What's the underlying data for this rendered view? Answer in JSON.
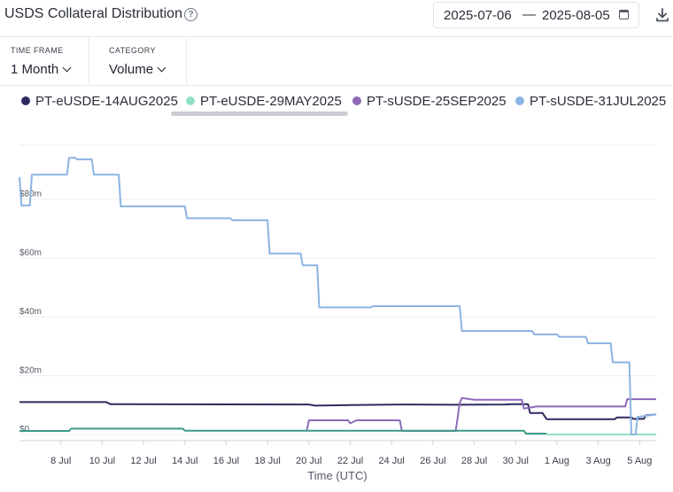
{
  "header": {
    "title": "USDS Collateral Distribution",
    "date_start": "2025-07-06",
    "date_separator": "—",
    "date_end": "2025-08-05",
    "help_glyph": "?"
  },
  "filters": {
    "time_frame_label": "TIME FRAME",
    "time_frame_value": "1 Month",
    "category_label": "CATEGORY",
    "category_value": "Volume"
  },
  "colors": {
    "eUSDE14AUG": "#2e2b5f",
    "eUSDE29MAY": "#8fe0c4",
    "sUSDE25SEP": "#8e6ab8",
    "sUSDE31JUL": "#8bb4e3",
    "green_line": "#3b9a86",
    "grid": "#eceef1"
  },
  "chart_data": {
    "type": "line",
    "xlabel": "Time (UTC)",
    "ylabel": "",
    "x_start_day": 6,
    "x_end_day": 36.8,
    "ylim": [
      0,
      100
    ],
    "x_ticks": [
      "8 Jul",
      "10 Jul",
      "12 Jul",
      "14 Jul",
      "16 Jul",
      "18 Jul",
      "20 Jul",
      "22 Jul",
      "24 Jul",
      "26 Jul",
      "28 Jul",
      "30 Jul",
      "1 Aug",
      "3 Aug",
      "5 Aug"
    ],
    "x_tick_days": [
      8,
      10,
      12,
      14,
      16,
      18,
      20,
      22,
      24,
      26,
      28,
      30,
      32,
      34,
      36
    ],
    "y_ticks": [
      "$0",
      "$20m",
      "$40m",
      "$60m",
      "$80m"
    ],
    "y_tick_values": [
      0,
      20,
      40,
      60,
      80
    ],
    "series": [
      {
        "name": "PT-eUSDE-14AUG2025",
        "color_key": "eUSDE14AUG",
        "points": [
          [
            6,
            11
          ],
          [
            10.2,
            11
          ],
          [
            10.4,
            10.3
          ],
          [
            20,
            10.2
          ],
          [
            20.3,
            9.8
          ],
          [
            22,
            10
          ],
          [
            24.5,
            10.2
          ],
          [
            27.2,
            10.1
          ],
          [
            29.5,
            10.2
          ],
          [
            29.8,
            10.3
          ],
          [
            30.6,
            10.3
          ],
          [
            30.7,
            7.3
          ],
          [
            31.3,
            7.3
          ],
          [
            31.5,
            5.2
          ],
          [
            34.8,
            5.2
          ],
          [
            34.9,
            5.8
          ],
          [
            35.6,
            5.8
          ],
          [
            35.7,
            5.3
          ],
          [
            36.2,
            5.3
          ],
          [
            36.3,
            6.5
          ],
          [
            36.8,
            6.8
          ]
        ]
      },
      {
        "name": "PT-eUSDE-29MAY2025",
        "color_key": "eUSDE29MAY",
        "points": [
          [
            31.5,
            0
          ],
          [
            36.8,
            0
          ]
        ]
      },
      {
        "name": "PT-sUSDE-25SEP2025",
        "color_key": "sUSDE25SEP",
        "points": [
          [
            19.9,
            1.5
          ],
          [
            20,
            4.8
          ],
          [
            21.9,
            4.8
          ],
          [
            22,
            3.8
          ],
          [
            22.3,
            4.8
          ],
          [
            24.4,
            4.8
          ],
          [
            24.5,
            1.2
          ],
          [
            27.1,
            1.2
          ],
          [
            27.2,
            6
          ],
          [
            27.3,
            10.8
          ],
          [
            27.4,
            12.4
          ],
          [
            28,
            11.8
          ],
          [
            30.3,
            11.8
          ],
          [
            30.4,
            8.8
          ],
          [
            31,
            9.5
          ],
          [
            35.3,
            9.5
          ],
          [
            35.4,
            12
          ],
          [
            36.8,
            12
          ]
        ]
      },
      {
        "name": "PT-sUSDE-31JUL2025",
        "color_key": "sUSDE31JUL",
        "points": [
          [
            6,
            87.5
          ],
          [
            6.1,
            77.8
          ],
          [
            6.5,
            77.8
          ],
          [
            6.6,
            88.3
          ],
          [
            8.3,
            88.3
          ],
          [
            8.4,
            94
          ],
          [
            8.7,
            94
          ],
          [
            8.8,
            93.5
          ],
          [
            9.5,
            93.5
          ],
          [
            9.6,
            88.3
          ],
          [
            10.8,
            88.3
          ],
          [
            10.9,
            77.5
          ],
          [
            14,
            77.5
          ],
          [
            14.1,
            73.5
          ],
          [
            16.2,
            73.5
          ],
          [
            16.3,
            72.8
          ],
          [
            18,
            72.8
          ],
          [
            18.1,
            61.5
          ],
          [
            19.6,
            61.5
          ],
          [
            19.7,
            57.5
          ],
          [
            20.4,
            57.5
          ],
          [
            20.5,
            43.2
          ],
          [
            23,
            43.2
          ],
          [
            23.1,
            43.6
          ],
          [
            27.3,
            43.6
          ],
          [
            27.4,
            35.2
          ],
          [
            30.8,
            35.2
          ],
          [
            30.9,
            34
          ],
          [
            32,
            34
          ],
          [
            32.1,
            33.2
          ],
          [
            33.4,
            33.2
          ],
          [
            33.5,
            31
          ],
          [
            34.6,
            31
          ],
          [
            34.7,
            24.5
          ],
          [
            35.5,
            24.5
          ],
          [
            35.6,
            0
          ],
          [
            35.8,
            0
          ],
          [
            35.9,
            6
          ],
          [
            36.8,
            6.8
          ]
        ]
      },
      {
        "name": "",
        "color_key": "green_line",
        "points": [
          [
            6,
            1.2
          ],
          [
            8.4,
            1.2
          ],
          [
            8.5,
            2
          ],
          [
            13.9,
            2
          ],
          [
            14,
            1.3
          ],
          [
            30.4,
            1.3
          ],
          [
            30.5,
            0.3
          ],
          [
            31.5,
            0.3
          ]
        ]
      }
    ]
  }
}
